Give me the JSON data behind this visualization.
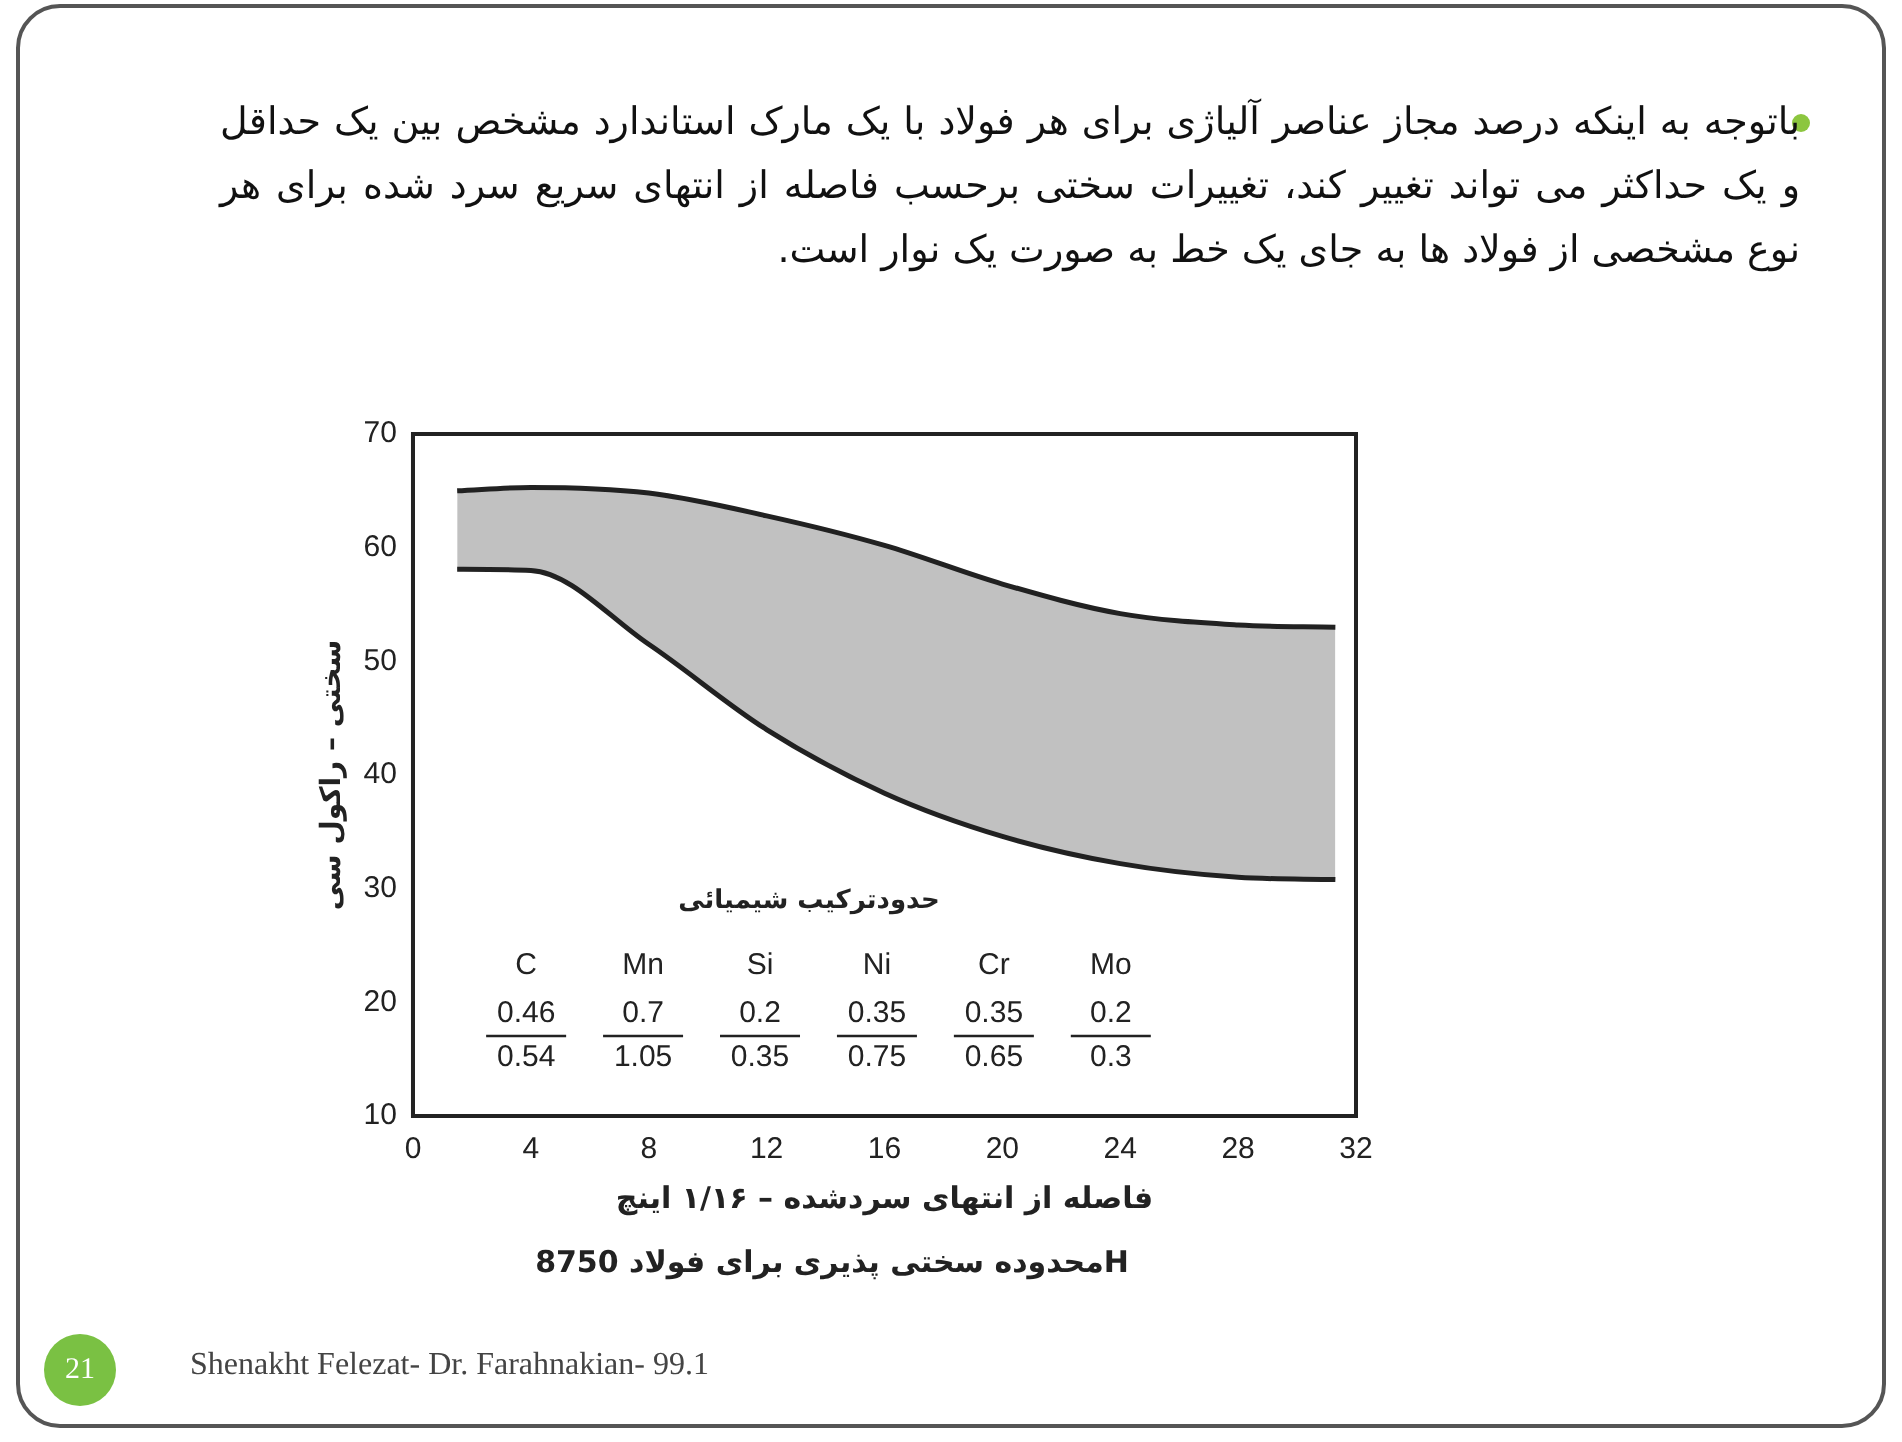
{
  "chart_data": {
    "type": "line",
    "title": "محدوده سختی پذیری برای فولاد 8750H",
    "subtitle": "باتوجه به اینکه درصد مجاز عناصر آلیاژی برای هر فولاد با یک مارک استاندارد مشخص بین یک حداقل و یک حداکثر می تواند تغییر کند، تغییرات سختی برحسب فاصله از انتهای سریع سرد شده برای هر نوع مشخصی از فولاد ها به جای یک خط به صورت یک نوار است.",
    "xlabel": "فاصله از انتهای سردشده – ۱/۱۶ اینچ",
    "ylabel": "سختی – راکول سی",
    "series": [
      {
        "color": "#222222",
        "x": [
          1.5,
          4,
          8,
          12,
          16,
          20,
          24,
          28,
          31.3
        ],
        "values": [
          65,
          65.3,
          64.8,
          62.8,
          60.2,
          56.8,
          54.2,
          53.2,
          53
        ],
        "lower": [
          58.1,
          58,
          51.5,
          44,
          38.4,
          34.6,
          32.2,
          31,
          30.8
        ],
        "upper": [
          65,
          65.3,
          64.8,
          62.8,
          60.2,
          56.8,
          54.2,
          53.2,
          53
        ]
      },
      {
        "color": "#222222",
        "x": [
          1.5,
          4,
          8,
          12,
          16,
          20,
          24,
          28,
          31.3
        ],
        "values": [
          58.1,
          58,
          51.5,
          44,
          38.4,
          34.6,
          32.2,
          31,
          30.8
        ]
      }
    ],
    "xlim": [
      0,
      32
    ],
    "xticks": [
      0,
      4,
      8,
      12,
      16,
      20,
      24,
      28,
      32
    ],
    "ylim": [
      10,
      70
    ],
    "yticks": [
      10,
      20,
      30,
      40,
      50,
      60,
      70
    ],
    "grid": false,
    "legend": false,
    "marker": "none",
    "line_style": "solid",
    "annotations": [
      "حدودترکیب شیمیائی",
      "C",
      "0.46",
      "0.54",
      "Mn",
      "0.7",
      "1.05",
      "Si",
      "0.2",
      "0.35",
      "Ni",
      "0.35",
      "0.75",
      "Cr",
      "0.35",
      "0.65",
      "Mo",
      "0.2",
      "0.3",
      "21",
      "Shenakht Felezat- Dr. Farahnakian- 99.1"
    ]
  }
}
